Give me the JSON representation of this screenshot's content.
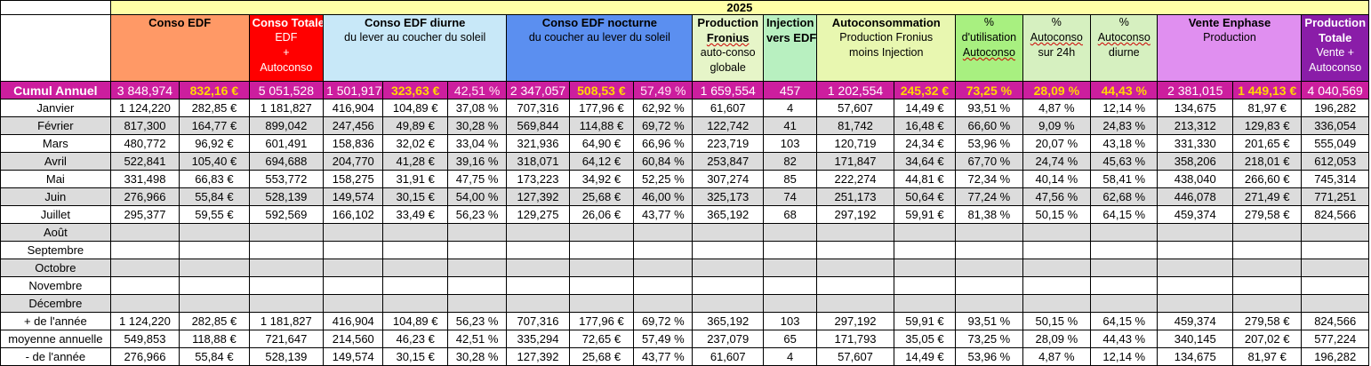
{
  "sheet": {
    "year": "2025",
    "colors": {
      "year": "#ffffa6",
      "conso_edf": "#ff9966",
      "conso_totale": "#ff0000",
      "diurne": "#c8e8f8",
      "nocturne": "#5b8ff0",
      "production_fronius": "#e6f5c8",
      "injection": "#b8f0c0",
      "autoconsommation": "#e8f7b0",
      "pct_utilisation": "#a8f080",
      "pct_24h": "#d6f0c0",
      "pct_diurne": "#d6f0c0",
      "vente_enphase": "#e08ff0",
      "production_totale": "#8a1da8",
      "cumul_row": "#cc1e9e",
      "gray_row": "#dcdcdc"
    },
    "headers": {
      "conso_edf": {
        "title": "Conso EDF"
      },
      "conso_totale": {
        "title": "Conso Totale",
        "l1": "EDF",
        "l2": "+",
        "l3": "Autoconso"
      },
      "diurne": {
        "title": "Conso EDF diurne",
        "sub": "du lever au coucher du soleil"
      },
      "nocturne": {
        "title": "Conso EDF nocturne",
        "sub": "du coucher au lever du soleil"
      },
      "fronius": {
        "title": "Production",
        "title2": "Fronius",
        "l1": "auto-conso",
        "l2": "globale"
      },
      "injection": {
        "title": "Injection",
        "title2": "vers EDF"
      },
      "autoconso": {
        "title": "Autoconsommation",
        "l1": "Production Fronius",
        "l2": "moins Injection"
      },
      "pct_util": {
        "l0": "%",
        "l1": "d'utilisation",
        "l2": "Autoconso"
      },
      "pct_24h": {
        "l0": "%",
        "l1": "Autoconso",
        "l2": "sur 24h"
      },
      "pct_diurne": {
        "l0": "%",
        "l1": "Autoconso",
        "l2": "diurne"
      },
      "enphase": {
        "title": "Vente Enphase",
        "sub": "Production"
      },
      "prod_totale": {
        "title": "Production",
        "title2": "Totale",
        "l1": "Vente +",
        "l2": "Autoconso"
      }
    },
    "cumul": [
      "Cumul Annuel",
      "3 848,974",
      "832,16 €",
      "5 051,528",
      "1 501,917",
      "323,63 €",
      "42,51 %",
      "2 347,057",
      "508,53 €",
      "57,49 %",
      "1 659,554",
      "457",
      "1 202,554",
      "245,32 €",
      "73,25 %",
      "28,09 %",
      "44,43 %",
      "2 381,015",
      "1 449,13 €",
      "4 040,569"
    ],
    "months": [
      [
        "Janvier",
        "1 124,220",
        "282,85 €",
        "1 181,827",
        "416,904",
        "104,89 €",
        "37,08 %",
        "707,316",
        "177,96 €",
        "62,92 %",
        "61,607",
        "4",
        "57,607",
        "14,49 €",
        "93,51 %",
        "4,87 %",
        "12,14 %",
        "134,675",
        "81,97 €",
        "196,282"
      ],
      [
        "Février",
        "817,300",
        "164,77 €",
        "899,042",
        "247,456",
        "49,89 €",
        "30,28 %",
        "569,844",
        "114,88 €",
        "69,72 %",
        "122,742",
        "41",
        "81,742",
        "16,48 €",
        "66,60 %",
        "9,09 %",
        "24,83 %",
        "213,312",
        "129,83 €",
        "336,054"
      ],
      [
        "Mars",
        "480,772",
        "96,92 €",
        "601,491",
        "158,836",
        "32,02 €",
        "33,04 %",
        "321,936",
        "64,90 €",
        "66,96 %",
        "223,719",
        "103",
        "120,719",
        "24,34 €",
        "53,96 %",
        "20,07 %",
        "43,18 %",
        "331,330",
        "201,65 €",
        "555,049"
      ],
      [
        "Avril",
        "522,841",
        "105,40 €",
        "694,688",
        "204,770",
        "41,28 €",
        "39,16 %",
        "318,071",
        "64,12 €",
        "60,84 %",
        "253,847",
        "82",
        "171,847",
        "34,64 €",
        "67,70 %",
        "24,74 %",
        "45,63 %",
        "358,206",
        "218,01 €",
        "612,053"
      ],
      [
        "Mai",
        "331,498",
        "66,83 €",
        "553,772",
        "158,275",
        "31,91 €",
        "47,75 %",
        "173,223",
        "34,92 €",
        "52,25 %",
        "307,274",
        "85",
        "222,274",
        "44,81 €",
        "72,34 %",
        "40,14 %",
        "58,41 %",
        "438,040",
        "266,60 €",
        "745,314"
      ],
      [
        "Juin",
        "276,966",
        "55,84 €",
        "528,139",
        "149,574",
        "30,15 €",
        "54,00 %",
        "127,392",
        "25,68 €",
        "46,00 %",
        "325,173",
        "74",
        "251,173",
        "50,64 €",
        "77,24 %",
        "47,56 %",
        "62,68 %",
        "446,078",
        "271,49 €",
        "771,251"
      ],
      [
        "Juillet",
        "295,377",
        "59,55 €",
        "592,569",
        "166,102",
        "33,49 €",
        "56,23 %",
        "129,275",
        "26,06 €",
        "43,77 %",
        "365,192",
        "68",
        "297,192",
        "59,91 €",
        "81,38 %",
        "50,15 %",
        "64,15 %",
        "459,374",
        "279,58 €",
        "824,566"
      ],
      [
        "Août",
        "",
        "",
        "",
        "",
        "",
        "",
        "",
        "",
        "",
        "",
        "",
        "",
        "",
        "",
        "",
        "",
        "",
        "",
        ""
      ],
      [
        "Septembre",
        "",
        "",
        "",
        "",
        "",
        "",
        "",
        "",
        "",
        "",
        "",
        "",
        "",
        "",
        "",
        "",
        "",
        "",
        ""
      ],
      [
        "Octobre",
        "",
        "",
        "",
        "",
        "",
        "",
        "",
        "",
        "",
        "",
        "",
        "",
        "",
        "",
        "",
        "",
        "",
        "",
        ""
      ],
      [
        "Novembre",
        "",
        "",
        "",
        "",
        "",
        "",
        "",
        "",
        "",
        "",
        "",
        "",
        "",
        "",
        "",
        "",
        "",
        "",
        ""
      ],
      [
        "Décembre",
        "",
        "",
        "",
        "",
        "",
        "",
        "",
        "",
        "",
        "",
        "",
        "",
        "",
        "",
        "",
        "",
        "",
        "",
        ""
      ]
    ],
    "stats": [
      [
        "+ de l'année",
        "1 124,220",
        "282,85 €",
        "1 181,827",
        "416,904",
        "104,89 €",
        "56,23 %",
        "707,316",
        "177,96 €",
        "69,72 %",
        "365,192",
        "103",
        "297,192",
        "59,91 €",
        "93,51 %",
        "50,15 %",
        "64,15 %",
        "459,374",
        "279,58 €",
        "824,566"
      ],
      [
        "moyenne annuelle",
        "549,853",
        "118,88 €",
        "721,647",
        "214,560",
        "46,23 €",
        "42,51 %",
        "335,294",
        "72,65 €",
        "57,49 %",
        "237,079",
        "65",
        "171,793",
        "35,05 €",
        "73,25 %",
        "28,09 %",
        "44,43 %",
        "340,145",
        "207,02 €",
        "577,224"
      ],
      [
        "- de l'année",
        "276,966",
        "55,84 €",
        "528,139",
        "149,574",
        "30,15 €",
        "30,28 %",
        "127,392",
        "25,68 €",
        "43,77 %",
        "61,607",
        "4",
        "57,607",
        "14,49 €",
        "53,96 %",
        "4,87 %",
        "12,14 %",
        "134,675",
        "81,97 €",
        "196,282"
      ]
    ]
  }
}
